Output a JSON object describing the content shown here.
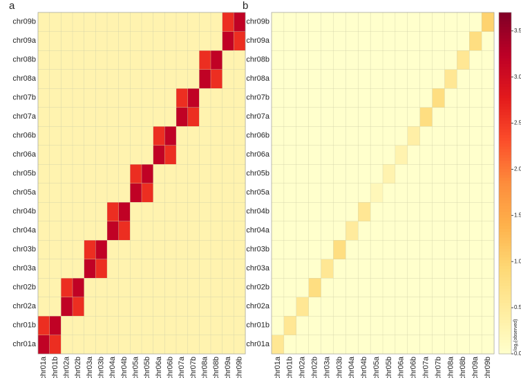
{
  "chart_data": [
    {
      "type": "heatmap",
      "title": "a",
      "categories": [
        "chr01a",
        "chr01b",
        "chr02a",
        "chr02b",
        "chr03a",
        "chr03b",
        "chr04a",
        "chr04b",
        "chr05a",
        "chr05b",
        "chr06a",
        "chr06b",
        "chr07a",
        "chr07b",
        "chr08a",
        "chr08b",
        "chr09a",
        "chr09b"
      ],
      "zlim": [
        0,
        3.7
      ],
      "colors": [
        "#ffffcc",
        "#ffeda0",
        "#fed976",
        "#feb24c",
        "#fd8d3c",
        "#fc4e2a",
        "#e31a1c",
        "#bd0026",
        "#800026"
      ],
      "values": [
        [
          3.2,
          2.6,
          0.3,
          0.3,
          0.3,
          0.3,
          0.3,
          0.3,
          0.3,
          0.3,
          0.3,
          0.3,
          0.3,
          0.3,
          0.3,
          0.3,
          0.3,
          0.3
        ],
        [
          2.6,
          3.2,
          0.3,
          0.3,
          0.3,
          0.3,
          0.3,
          0.3,
          0.3,
          0.3,
          0.3,
          0.3,
          0.3,
          0.3,
          0.3,
          0.3,
          0.3,
          0.3
        ],
        [
          0.3,
          0.3,
          3.2,
          2.6,
          0.3,
          0.3,
          0.3,
          0.3,
          0.3,
          0.3,
          0.3,
          0.3,
          0.3,
          0.3,
          0.3,
          0.3,
          0.3,
          0.3
        ],
        [
          0.3,
          0.3,
          2.6,
          3.2,
          0.3,
          0.3,
          0.3,
          0.3,
          0.3,
          0.3,
          0.3,
          0.3,
          0.3,
          0.3,
          0.3,
          0.3,
          0.3,
          0.3
        ],
        [
          0.3,
          0.3,
          0.3,
          0.3,
          3.2,
          2.6,
          0.3,
          0.3,
          0.3,
          0.3,
          0.3,
          0.3,
          0.3,
          0.3,
          0.3,
          0.3,
          0.3,
          0.3
        ],
        [
          0.3,
          0.3,
          0.3,
          0.3,
          2.6,
          3.2,
          0.3,
          0.3,
          0.3,
          0.3,
          0.3,
          0.3,
          0.3,
          0.3,
          0.3,
          0.3,
          0.3,
          0.3
        ],
        [
          0.3,
          0.3,
          0.3,
          0.3,
          0.3,
          0.3,
          3.2,
          2.6,
          0.3,
          0.3,
          0.3,
          0.3,
          0.3,
          0.3,
          0.3,
          0.3,
          0.3,
          0.3
        ],
        [
          0.3,
          0.3,
          0.3,
          0.3,
          0.3,
          0.3,
          2.6,
          3.2,
          0.3,
          0.3,
          0.3,
          0.3,
          0.3,
          0.3,
          0.3,
          0.3,
          0.3,
          0.3
        ],
        [
          0.3,
          0.3,
          0.3,
          0.3,
          0.3,
          0.3,
          0.3,
          0.3,
          3.2,
          2.6,
          0.3,
          0.3,
          0.3,
          0.3,
          0.3,
          0.3,
          0.3,
          0.3
        ],
        [
          0.3,
          0.3,
          0.3,
          0.3,
          0.3,
          0.3,
          0.3,
          0.3,
          2.6,
          3.2,
          0.3,
          0.3,
          0.3,
          0.3,
          0.3,
          0.3,
          0.3,
          0.3
        ],
        [
          0.3,
          0.3,
          0.3,
          0.3,
          0.3,
          0.3,
          0.3,
          0.3,
          0.3,
          0.3,
          3.2,
          2.6,
          0.3,
          0.3,
          0.3,
          0.3,
          0.3,
          0.3
        ],
        [
          0.3,
          0.3,
          0.3,
          0.3,
          0.3,
          0.3,
          0.3,
          0.3,
          0.3,
          0.3,
          2.6,
          3.2,
          0.3,
          0.3,
          0.3,
          0.3,
          0.3,
          0.3
        ],
        [
          0.3,
          0.3,
          0.3,
          0.3,
          0.3,
          0.3,
          0.3,
          0.3,
          0.3,
          0.3,
          0.3,
          0.3,
          3.2,
          2.6,
          0.3,
          0.3,
          0.3,
          0.3
        ],
        [
          0.3,
          0.3,
          0.3,
          0.3,
          0.3,
          0.3,
          0.3,
          0.3,
          0.3,
          0.3,
          0.3,
          0.3,
          2.6,
          3.2,
          0.3,
          0.3,
          0.3,
          0.3
        ],
        [
          0.3,
          0.3,
          0.3,
          0.3,
          0.3,
          0.3,
          0.3,
          0.3,
          0.3,
          0.3,
          0.3,
          0.3,
          0.3,
          0.3,
          3.2,
          2.6,
          0.3,
          0.3
        ],
        [
          0.3,
          0.3,
          0.3,
          0.3,
          0.3,
          0.3,
          0.3,
          0.3,
          0.3,
          0.3,
          0.3,
          0.3,
          0.3,
          0.3,
          2.6,
          3.2,
          0.3,
          0.3
        ],
        [
          0.3,
          0.3,
          0.3,
          0.3,
          0.3,
          0.3,
          0.3,
          0.3,
          0.3,
          0.3,
          0.3,
          0.3,
          0.3,
          0.3,
          0.3,
          0.3,
          3.2,
          2.6
        ],
        [
          0.3,
          0.3,
          0.3,
          0.3,
          0.3,
          0.3,
          0.3,
          0.3,
          0.3,
          0.3,
          0.3,
          0.3,
          0.3,
          0.3,
          0.3,
          0.3,
          2.6,
          3.2
        ]
      ]
    },
    {
      "type": "heatmap",
      "title": "b",
      "categories": [
        "chr01a",
        "chr01b",
        "chr02a",
        "chr02b",
        "chr03a",
        "chr03b",
        "chr04a",
        "chr04b",
        "chr05a",
        "chr05b",
        "chr06a",
        "chr06b",
        "chr07a",
        "chr07b",
        "chr08a",
        "chr08b",
        "chr09a",
        "chr09b"
      ],
      "zlim": [
        0,
        3.7
      ],
      "colors": [
        "#ffffcc",
        "#ffeda0",
        "#fed976",
        "#feb24c",
        "#fd8d3c",
        "#fc4e2a",
        "#e31a1c",
        "#bd0026",
        "#800026"
      ],
      "zticks": [
        {
          "value": 0,
          "label": "0.0"
        },
        {
          "value": 0.5,
          "label": "0.5"
        },
        {
          "value": 1,
          "label": "1.0"
        },
        {
          "value": 1.5,
          "label": "1.5"
        },
        {
          "value": 2,
          "label": "2.0"
        },
        {
          "value": 2.5,
          "label": "2.5"
        },
        {
          "value": 3,
          "label": "3.0"
        },
        {
          "value": 3.5,
          "label": "3.5"
        }
      ],
      "colorbar_label": "log₂(observed)",
      "values": [
        [
          0.6,
          0,
          0,
          0,
          0,
          0,
          0,
          0,
          0,
          0,
          0,
          0,
          0,
          0,
          0,
          0,
          0,
          0
        ],
        [
          0,
          0.6,
          0,
          0,
          0,
          0,
          0,
          0,
          0,
          0,
          0,
          0,
          0,
          0,
          0,
          0,
          0,
          0
        ],
        [
          0,
          0,
          0.6,
          0,
          0,
          0,
          0,
          0,
          0,
          0,
          0,
          0,
          0,
          0,
          0,
          0,
          0,
          0
        ],
        [
          0,
          0,
          0,
          0.8,
          0,
          0,
          0,
          0,
          0,
          0,
          0,
          0,
          0,
          0,
          0,
          0,
          0,
          0
        ],
        [
          0,
          0,
          0,
          0,
          0.6,
          0,
          0,
          0,
          0,
          0,
          0,
          0,
          0,
          0,
          0,
          0,
          0,
          0
        ],
        [
          0,
          0,
          0,
          0,
          0,
          0.8,
          0,
          0,
          0,
          0,
          0,
          0,
          0,
          0,
          0,
          0,
          0,
          0
        ],
        [
          0,
          0,
          0,
          0,
          0,
          0,
          0.5,
          0,
          0,
          0,
          0,
          0,
          0,
          0,
          0,
          0,
          0,
          0
        ],
        [
          0,
          0,
          0,
          0,
          0,
          0,
          0,
          0.6,
          0,
          0,
          0,
          0,
          0,
          0,
          0,
          0,
          0,
          0
        ],
        [
          0,
          0,
          0,
          0,
          0,
          0,
          0,
          0,
          0.2,
          0,
          0,
          0,
          0,
          0,
          0,
          0,
          0,
          0
        ],
        [
          0,
          0,
          0,
          0,
          0,
          0,
          0,
          0,
          0,
          0.3,
          0,
          0,
          0,
          0,
          0,
          0,
          0,
          0
        ],
        [
          0,
          0,
          0,
          0,
          0,
          0,
          0,
          0,
          0,
          0,
          0.3,
          0,
          0,
          0,
          0,
          0,
          0,
          0
        ],
        [
          0,
          0,
          0,
          0,
          0,
          0,
          0,
          0,
          0,
          0,
          0,
          0.4,
          0,
          0,
          0,
          0,
          0,
          0
        ],
        [
          0,
          0,
          0,
          0,
          0,
          0,
          0,
          0,
          0,
          0,
          0,
          0,
          0.8,
          0,
          0,
          0,
          0,
          0
        ],
        [
          0,
          0,
          0,
          0,
          0,
          0,
          0,
          0,
          0,
          0,
          0,
          0,
          0,
          0.8,
          0,
          0,
          0,
          0
        ],
        [
          0,
          0,
          0,
          0,
          0,
          0,
          0,
          0,
          0,
          0,
          0,
          0,
          0,
          0,
          0.6,
          0,
          0,
          0
        ],
        [
          0,
          0,
          0,
          0,
          0,
          0,
          0,
          0,
          0,
          0,
          0,
          0,
          0,
          0,
          0,
          0.6,
          0,
          0
        ],
        [
          0,
          0,
          0,
          0,
          0,
          0,
          0,
          0,
          0,
          0,
          0,
          0,
          0,
          0,
          0,
          0,
          0.8,
          0
        ],
        [
          0,
          0,
          0,
          0,
          0,
          0,
          0,
          0,
          0,
          0,
          0,
          0,
          0,
          0,
          0,
          0,
          0,
          1.0
        ]
      ]
    }
  ]
}
